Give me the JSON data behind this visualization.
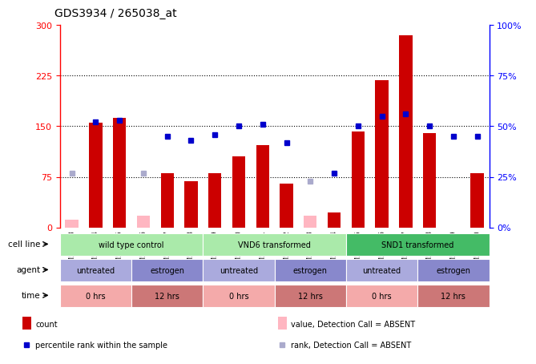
{
  "title": "GDS3934 / 265038_at",
  "samples": [
    "GSM517073",
    "GSM517074",
    "GSM517075",
    "GSM517076",
    "GSM517077",
    "GSM517078",
    "GSM517079",
    "GSM517080",
    "GSM517081",
    "GSM517082",
    "GSM517083",
    "GSM517084",
    "GSM517085",
    "GSM517086",
    "GSM517087",
    "GSM517088",
    "GSM517089",
    "GSM517090"
  ],
  "count_values": [
    null,
    155,
    162,
    null,
    80,
    68,
    80,
    105,
    122,
    65,
    null,
    22,
    142,
    218,
    285,
    140,
    null,
    80
  ],
  "count_absent": [
    12,
    null,
    null,
    18,
    null,
    null,
    null,
    null,
    null,
    null,
    18,
    null,
    null,
    null,
    null,
    null,
    null,
    null
  ],
  "rank_values": [
    null,
    52,
    53,
    null,
    45,
    43,
    46,
    50,
    51,
    42,
    null,
    27,
    50,
    55,
    56,
    50,
    45,
    45
  ],
  "rank_absent": [
    27,
    null,
    null,
    27,
    null,
    null,
    null,
    null,
    null,
    null,
    23,
    null,
    null,
    null,
    null,
    null,
    null,
    null
  ],
  "ylim_left": [
    0,
    300
  ],
  "ylim_right": [
    0,
    100
  ],
  "yticks_left": [
    0,
    75,
    150,
    225,
    300
  ],
  "ytick_labels_left": [
    "0",
    "75",
    "150",
    "225",
    "300"
  ],
  "yticks_right": [
    0,
    25,
    50,
    75,
    100
  ],
  "ytick_labels_right": [
    "0%",
    "25%",
    "50%",
    "75%",
    "100%"
  ],
  "grid_lines": [
    75,
    150,
    225
  ],
  "cell_line_groups": [
    {
      "label": "wild type control",
      "start": 0,
      "end": 6,
      "color": "#aaeaaa"
    },
    {
      "label": "VND6 transformed",
      "start": 6,
      "end": 12,
      "color": "#aaeaaa"
    },
    {
      "label": "SND1 transformed",
      "start": 12,
      "end": 18,
      "color": "#44bb66"
    }
  ],
  "agent_groups": [
    {
      "label": "untreated",
      "start": 0,
      "end": 3,
      "color": "#aaaadd"
    },
    {
      "label": "estrogen",
      "start": 3,
      "end": 6,
      "color": "#8888cc"
    },
    {
      "label": "untreated",
      "start": 6,
      "end": 9,
      "color": "#aaaadd"
    },
    {
      "label": "estrogen",
      "start": 9,
      "end": 12,
      "color": "#8888cc"
    },
    {
      "label": "untreated",
      "start": 12,
      "end": 15,
      "color": "#aaaadd"
    },
    {
      "label": "estrogen",
      "start": 15,
      "end": 18,
      "color": "#8888cc"
    }
  ],
  "time_groups": [
    {
      "label": "0 hrs",
      "start": 0,
      "end": 3,
      "color": "#f4aaaa"
    },
    {
      "label": "12 hrs",
      "start": 3,
      "end": 6,
      "color": "#cc7777"
    },
    {
      "label": "0 hrs",
      "start": 6,
      "end": 9,
      "color": "#f4aaaa"
    },
    {
      "label": "12 hrs",
      "start": 9,
      "end": 12,
      "color": "#cc7777"
    },
    {
      "label": "0 hrs",
      "start": 12,
      "end": 15,
      "color": "#f4aaaa"
    },
    {
      "label": "12 hrs",
      "start": 15,
      "end": 18,
      "color": "#cc7777"
    }
  ],
  "bar_color": "#cc0000",
  "absent_bar_color": "#ffb6c1",
  "rank_dot_color": "#0000cc",
  "rank_absent_dot_color": "#aaaacc",
  "legend_items": [
    {
      "color": "#cc0000",
      "marker": "rect",
      "label": "count"
    },
    {
      "color": "#0000cc",
      "marker": "square",
      "label": "percentile rank within the sample"
    },
    {
      "color": "#ffb6c1",
      "marker": "rect",
      "label": "value, Detection Call = ABSENT"
    },
    {
      "color": "#aaaacc",
      "marker": "square",
      "label": "rank, Detection Call = ABSENT"
    }
  ],
  "bg_color": "#ffffff",
  "plot_area_bg": "#ffffff"
}
